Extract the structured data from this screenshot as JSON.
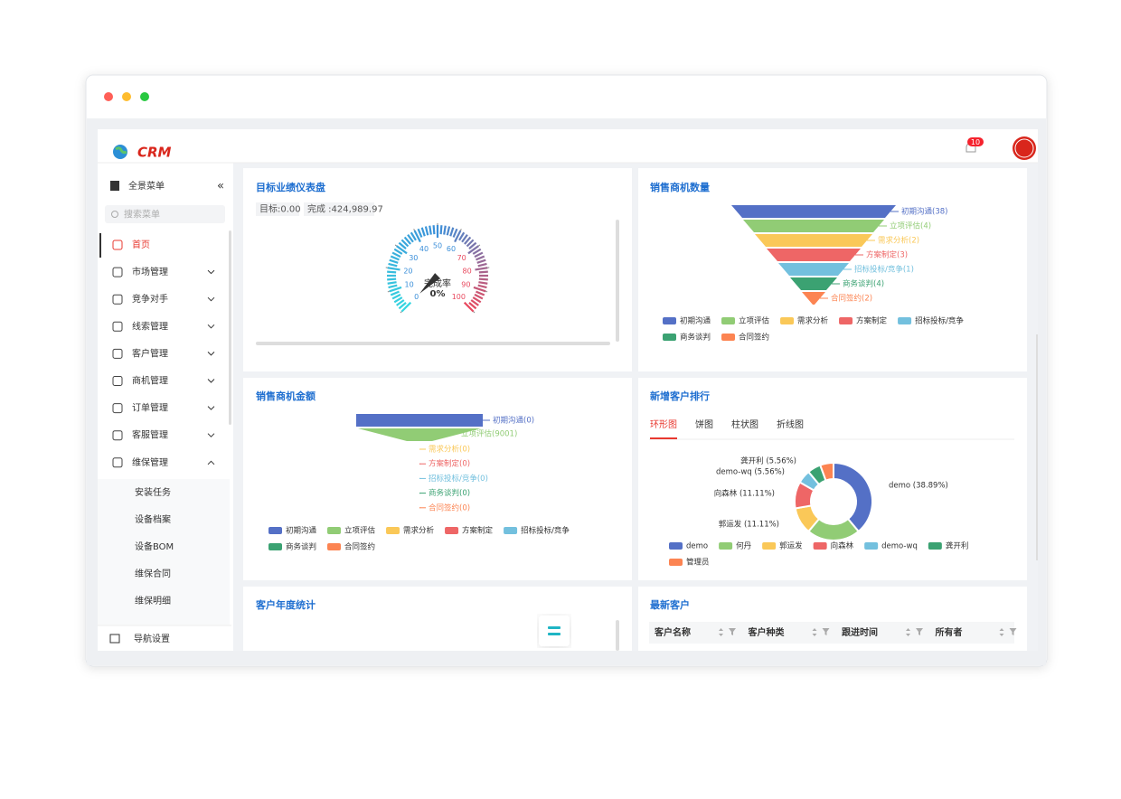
{
  "header": {
    "logo": "CRM",
    "notification_count": 10
  },
  "sidebar": {
    "title": "全景菜单",
    "search_placeholder": "搜索菜单",
    "menu": [
      "首页",
      "市场管理",
      "竞争对手",
      "线索管理",
      "客户管理",
      "商机管理",
      "订单管理",
      "客服管理",
      "维保管理"
    ],
    "submenu": [
      "安装任务",
      "设备档案",
      "设备BOM",
      "维保合同",
      "维保明细"
    ],
    "footer": "导航设置"
  },
  "gauge_panel": {
    "title": "目标业绩仪表盘",
    "target": "目标:0.00",
    "completed": "完成 :424,989.97",
    "gauge": {
      "type": "gauge",
      "range": [
        0,
        100
      ],
      "ticks": [
        0,
        10,
        20,
        30,
        40,
        50,
        60,
        70,
        80,
        90,
        100
      ],
      "label": "完成率",
      "value": 0,
      "value_label": "0%"
    }
  },
  "opportunity_count": {
    "title": "销售商机数量",
    "type": "funnel",
    "categories": [
      "初期沟通",
      "立项评估",
      "需求分析",
      "方案制定",
      "招标投标/竞争",
      "商务谈判",
      "合同签约"
    ],
    "values": [
      38,
      4,
      2,
      3,
      1,
      4,
      2
    ],
    "value_labels": [
      "初期沟通(38)",
      "立项评估(4)",
      "需求分析(2)",
      "方案制定(3)",
      "招标投标/竞争(1)",
      "商务谈判(4)",
      "合同签约(2)"
    ],
    "colors": [
      "#5470c6",
      "#91cc75",
      "#fac858",
      "#ee6666",
      "#73c0de",
      "#3ba272",
      "#fc8452"
    ]
  },
  "opportunity_amount": {
    "title": "销售商机金额",
    "type": "funnel",
    "categories": [
      "初期沟通",
      "立项评估",
      "需求分析",
      "方案制定",
      "招标投标/竞争",
      "商务谈判",
      "合同签约"
    ],
    "values": [
      0,
      9001,
      0,
      0,
      0,
      0,
      0
    ],
    "value_labels": [
      "初期沟通(0)",
      "立项评估(9001)",
      "需求分析(0)",
      "方案制定(0)",
      "招标投标/竞争(0)",
      "商务谈判(0)",
      "合同签约(0)"
    ],
    "colors": [
      "#5470c6",
      "#91cc75",
      "#fac858",
      "#ee6666",
      "#73c0de",
      "#3ba272",
      "#fc8452"
    ]
  },
  "customer_ranking": {
    "title": "新增客户排行",
    "tabs": [
      "环形图",
      "饼图",
      "柱状图",
      "折线图"
    ],
    "active_tab": 0,
    "type": "donut",
    "categories": [
      "demo",
      "何丹",
      "郭运发",
      "向森林",
      "demo-wq",
      "龚开利",
      "管理员"
    ],
    "values": [
      38.89,
      22.22,
      11.11,
      11.11,
      5.56,
      5.56,
      5.56
    ],
    "value_labels": [
      "demo (38.89%)",
      null,
      "郭运发 (11.11%)",
      "向森林 (11.11%)",
      "demo-wq (5.56%)",
      "龚开利 (5.56%)",
      null
    ],
    "colors": [
      "#5470c6",
      "#91cc75",
      "#fac858",
      "#ee6666",
      "#73c0de",
      "#3ba272",
      "#fc8452"
    ]
  },
  "annual_stats": {
    "title": "客户年度统计"
  },
  "latest_customers": {
    "title": "最新客户",
    "columns": [
      "客户名称",
      "客户种类",
      "跟进时间",
      "所有者"
    ]
  }
}
